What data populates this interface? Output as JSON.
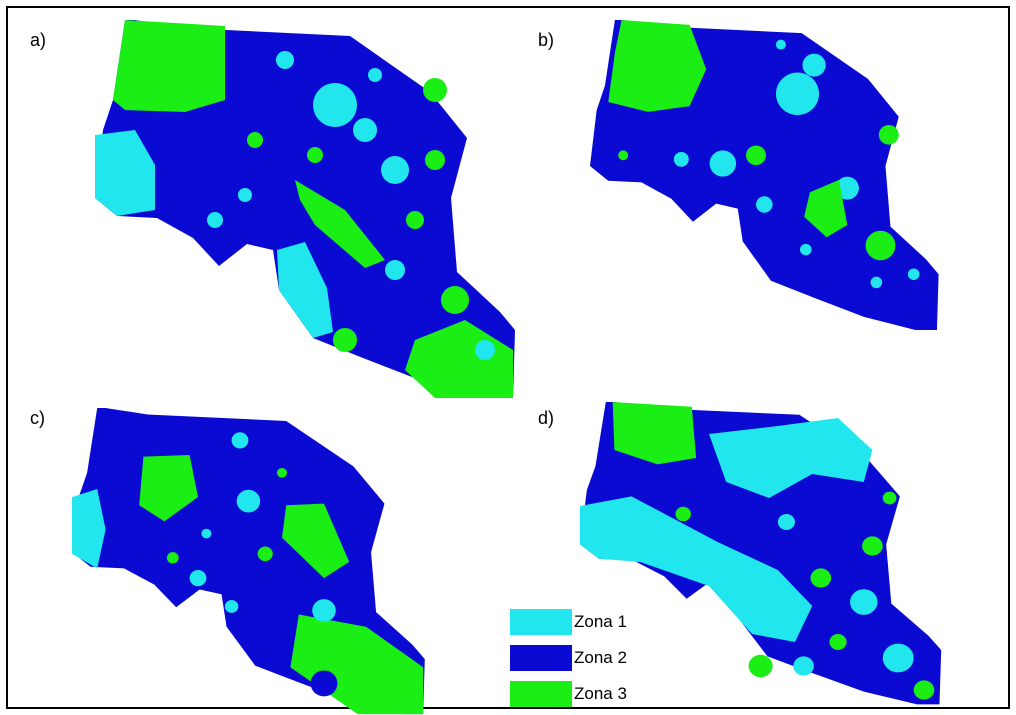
{
  "panels": [
    {
      "id": "a",
      "label": "a)"
    },
    {
      "id": "b",
      "label": "b)"
    },
    {
      "id": "c",
      "label": "c)"
    },
    {
      "id": "d",
      "label": "d)"
    }
  ],
  "legend": [
    {
      "label": "Zona 1",
      "color": "#22e6ee"
    },
    {
      "label": "Zona 2",
      "color": "#0a0ad2"
    },
    {
      "label": "Zona 3",
      "color": "#1aee14"
    }
  ]
}
